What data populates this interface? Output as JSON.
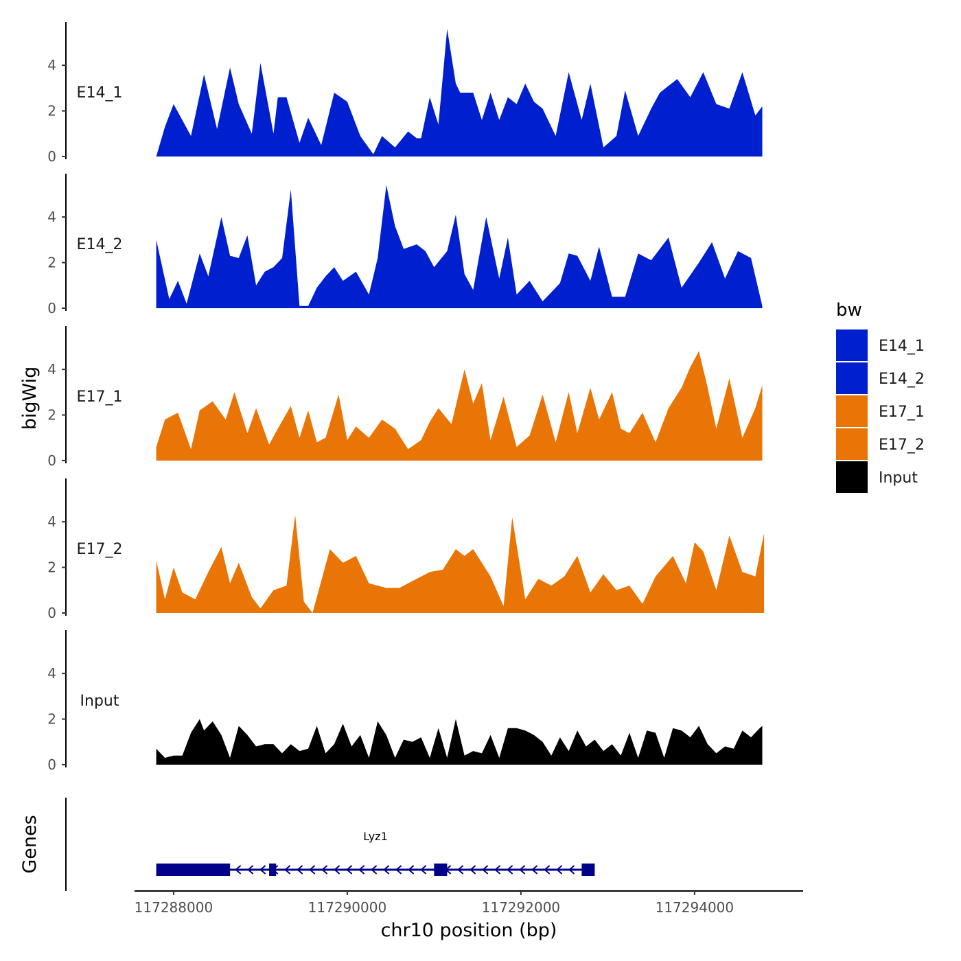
{
  "chart_data": {
    "type": "area",
    "x_axis": {
      "title": "chr10 position (bp)",
      "lim": [
        117287550,
        117295250
      ],
      "ticks": [
        117288000,
        117290000,
        117292000,
        117294000
      ],
      "tick_labels": [
        "117288000",
        "117290000",
        "117292000",
        "117294000"
      ]
    },
    "y_axis": {
      "title": "bigWig",
      "lim": [
        0,
        5.9
      ],
      "ticks": [
        0,
        2,
        4
      ],
      "tick_labels": [
        "0",
        "2",
        "4"
      ]
    },
    "gene_axis_title": "Genes",
    "legend": {
      "title": "bw",
      "items": [
        {
          "label": "E14_1",
          "color": "#0020CF"
        },
        {
          "label": "E14_2",
          "color": "#0020CF"
        },
        {
          "label": "E17_1",
          "color": "#E87506"
        },
        {
          "label": "E17_2",
          "color": "#E87506"
        },
        {
          "label": "Input",
          "color": "#000000"
        }
      ]
    },
    "series": [
      {
        "name": "E14_1",
        "color": "#0020CF",
        "x": [
          117287800,
          117287900,
          117288000,
          117288200,
          117288350,
          117288500,
          117288650,
          117288750,
          117288900,
          117289000,
          117289150,
          117289200,
          117289300,
          117289450,
          117289550,
          117289700,
          117289850,
          117290000,
          117290150,
          117290300,
          117290400,
          117290550,
          117290700,
          117290800,
          117290850,
          117290950,
          117291050,
          117291150,
          117291250,
          117291300,
          117291350,
          117291450,
          117291550,
          117291650,
          117291750,
          117291850,
          117291950,
          117292050,
          117292150,
          117292250,
          117292400,
          117292550,
          117292700,
          117292800,
          117292950,
          117293100,
          117293200,
          117293350,
          117293500,
          117293600,
          117293800,
          117293950,
          117294100,
          117294250,
          117294400,
          117294550,
          117294700,
          117294780
        ],
        "y": [
          0,
          1.3,
          2.3,
          0.9,
          3.6,
          1.2,
          3.9,
          2.3,
          1,
          4.1,
          1,
          2.6,
          2.6,
          0.6,
          1.7,
          0.5,
          2.8,
          2.4,
          0.9,
          0.1,
          0.9,
          0.4,
          1.1,
          0.8,
          0.8,
          2.6,
          1.4,
          5.6,
          3.2,
          2.8,
          2.8,
          2.8,
          1.6,
          2.8,
          1.6,
          2.6,
          2.3,
          3.2,
          2.4,
          2.1,
          0.9,
          3.7,
          1.6,
          3.2,
          0.4,
          0.9,
          2.9,
          0.9,
          2.1,
          2.8,
          3.4,
          2.6,
          3.7,
          2.3,
          2.1,
          3.7,
          1.8,
          2.2
        ]
      },
      {
        "name": "E14_2",
        "color": "#0020CF",
        "x": [
          117287800,
          117287950,
          117288050,
          117288150,
          117288300,
          117288400,
          117288550,
          117288650,
          117288750,
          117288850,
          117288950,
          117289050,
          117289150,
          117289250,
          117289350,
          117289450,
          117289550,
          117289650,
          117289750,
          117289850,
          117289950,
          117290100,
          117290250,
          117290350,
          117290450,
          117290550,
          117290650,
          117290800,
          117290900,
          117291000,
          117291150,
          117291250,
          117291350,
          117291450,
          117291600,
          117291750,
          117291850,
          117291950,
          117292100,
          117292250,
          117292350,
          117292450,
          117292550,
          117292650,
          117292800,
          117292900,
          117293050,
          117293200,
          117293350,
          117293500,
          117293700,
          117293850,
          117294050,
          117294200,
          117294350,
          117294500,
          117294650,
          117294780
        ],
        "y": [
          3,
          0.4,
          1.2,
          0.2,
          2.4,
          1.4,
          4,
          2.3,
          2.2,
          3.2,
          1,
          1.6,
          1.8,
          2.2,
          5.2,
          0.1,
          0.1,
          0.9,
          1.4,
          1.8,
          1.2,
          1.6,
          0.6,
          2.2,
          5.4,
          3.6,
          2.6,
          2.8,
          2.5,
          1.8,
          2.5,
          4.1,
          1.5,
          0.8,
          4,
          1.3,
          3.1,
          0.6,
          1.2,
          0.3,
          0.7,
          1.1,
          2.4,
          2.3,
          1.2,
          2.7,
          0.5,
          0.5,
          2.4,
          2.1,
          3.1,
          0.9,
          2,
          2.9,
          1.3,
          2.5,
          2.2,
          0.1
        ]
      },
      {
        "name": "E17_1",
        "color": "#E87506",
        "x": [
          117287800,
          117287900,
          117288050,
          117288200,
          117288300,
          117288450,
          117288600,
          117288700,
          117288850,
          117288950,
          117289100,
          117289200,
          117289350,
          117289450,
          117289550,
          117289650,
          117289750,
          117289900,
          117290000,
          117290100,
          117290250,
          117290400,
          117290550,
          117290700,
          117290850,
          117290950,
          117291050,
          117291200,
          117291350,
          117291450,
          117291550,
          117291650,
          117291800,
          117291950,
          117292100,
          117292250,
          117292400,
          117292550,
          117292650,
          117292800,
          117292900,
          117293050,
          117293150,
          117293250,
          117293400,
          117293550,
          117293700,
          117293850,
          117293950,
          117294050,
          117294150,
          117294250,
          117294400,
          117294550,
          117294700,
          117294780
        ],
        "y": [
          0.6,
          1.8,
          2.1,
          0.5,
          2.2,
          2.6,
          1.8,
          3,
          1.2,
          2.3,
          0.7,
          1.4,
          2.4,
          1,
          2.2,
          0.8,
          1,
          2.9,
          0.9,
          1.5,
          1,
          1.8,
          1.4,
          0.5,
          0.9,
          1.7,
          2.3,
          1.6,
          4,
          2.5,
          3.4,
          0.9,
          2.8,
          0.6,
          1.1,
          2.9,
          0.8,
          3,
          1.2,
          3.2,
          1.8,
          3,
          1.4,
          1.2,
          2.1,
          0.8,
          2.3,
          3.2,
          4.1,
          4.8,
          3.2,
          1.4,
          3.6,
          1,
          2.3,
          3.3
        ]
      },
      {
        "name": "E17_2",
        "color": "#E87506",
        "x": [
          117287800,
          117287900,
          117288000,
          117288100,
          117288250,
          117288400,
          117288550,
          117288650,
          117288750,
          117288900,
          117289000,
          117289150,
          117289300,
          117289400,
          117289500,
          117289600,
          117289800,
          117289950,
          117290100,
          117290250,
          117290450,
          117290600,
          117290750,
          117290950,
          117291100,
          117291250,
          117291350,
          117291450,
          117291650,
          117291800,
          117291900,
          117292050,
          117292200,
          117292350,
          117292500,
          117292650,
          117292800,
          117292950,
          117293100,
          117293250,
          117293400,
          117293550,
          117293750,
          117293900,
          117294000,
          117294100,
          117294250,
          117294400,
          117294550,
          117294700,
          117294800
        ],
        "y": [
          2.3,
          0.6,
          2,
          0.9,
          0.6,
          1.8,
          2.9,
          1.3,
          2.2,
          0.7,
          0.2,
          1,
          1.2,
          4.3,
          0.5,
          0,
          2.8,
          2.2,
          2.5,
          1.3,
          1.1,
          1.1,
          1.4,
          1.8,
          1.9,
          2.8,
          2.5,
          2.8,
          1.6,
          0.3,
          4.2,
          0.6,
          1.5,
          1.2,
          1.6,
          2.5,
          0.9,
          1.7,
          1,
          1.2,
          0.4,
          1.6,
          2.5,
          1.3,
          3.1,
          2.7,
          1,
          3.4,
          1.8,
          1.6,
          3.5
        ]
      },
      {
        "name": "Input",
        "color": "#000000",
        "x": [
          117287800,
          117287900,
          117288000,
          117288100,
          117288200,
          117288300,
          117288350,
          117288450,
          117288550,
          117288650,
          117288750,
          117288850,
          117288950,
          117289050,
          117289150,
          117289250,
          117289350,
          117289450,
          117289550,
          117289650,
          117289750,
          117289850,
          117289950,
          117290050,
          117290150,
          117290250,
          117290350,
          117290450,
          117290550,
          117290650,
          117290750,
          117290850,
          117290950,
          117291050,
          117291150,
          117291250,
          117291350,
          117291450,
          117291550,
          117291650,
          117291750,
          117291850,
          117291950,
          117292050,
          117292150,
          117292250,
          117292350,
          117292450,
          117292550,
          117292650,
          117292750,
          117292850,
          117292950,
          117293050,
          117293150,
          117293250,
          117293350,
          117293450,
          117293550,
          117293650,
          117293750,
          117293850,
          117293950,
          117294050,
          117294150,
          117294250,
          117294350,
          117294450,
          117294550,
          117294650,
          117294750,
          117294780
        ],
        "y": [
          0.7,
          0.3,
          0.4,
          0.4,
          1.4,
          2,
          1.5,
          1.9,
          1.3,
          0.3,
          1.7,
          1.3,
          0.8,
          0.9,
          0.9,
          0.5,
          0.9,
          0.6,
          0.7,
          1.7,
          0.5,
          0.9,
          1.8,
          0.8,
          1.3,
          0.3,
          1.9,
          1.3,
          0.3,
          1.1,
          1,
          1.2,
          0.3,
          1.6,
          0.3,
          2,
          0.4,
          0.6,
          0.5,
          1.3,
          0.3,
          1.6,
          1.6,
          1.5,
          1.3,
          1,
          0.4,
          1.2,
          0.6,
          1.5,
          0.8,
          1.1,
          0.6,
          0.9,
          0.4,
          1.4,
          0.3,
          1.5,
          1.4,
          0.3,
          1.6,
          1.5,
          1.2,
          1.7,
          0.9,
          0.5,
          0.8,
          0.7,
          1.5,
          1.2,
          1.6,
          1.7
        ]
      }
    ],
    "gene": {
      "label": "Lyz1",
      "start": 117287800,
      "end": 117292850,
      "strand": "-",
      "exons": [
        [
          117287800,
          117288650
        ],
        [
          117289100,
          117289180
        ],
        [
          117291000,
          117291150
        ],
        [
          117292700,
          117292850
        ]
      ]
    }
  }
}
